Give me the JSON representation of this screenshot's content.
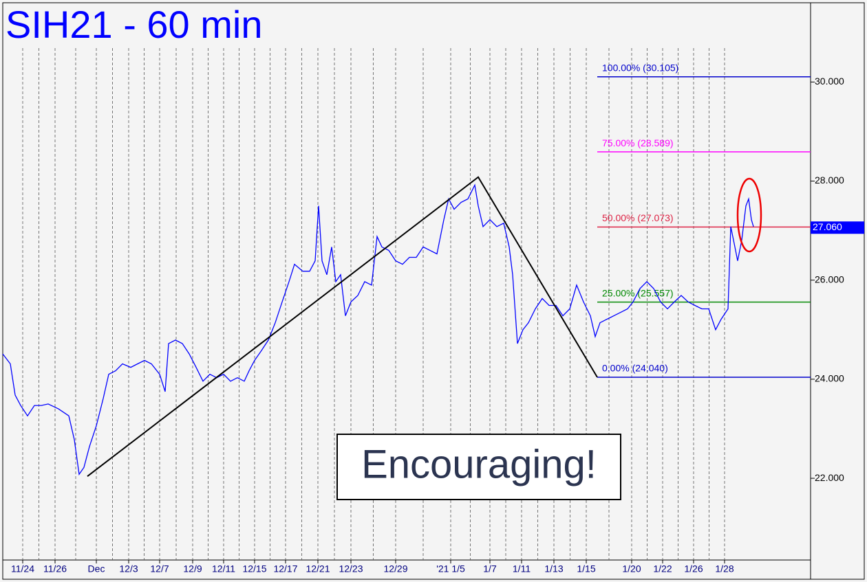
{
  "chart_data": {
    "type": "line",
    "title": "SIH21 - 60 min",
    "annotation": "Encouraging!",
    "color": "#0000ff",
    "x": [
      0,
      11,
      18,
      26,
      36,
      46,
      56,
      66,
      81,
      96,
      104,
      111,
      118,
      126,
      136,
      146,
      154,
      164,
      174,
      186,
      196,
      206,
      216,
      228,
      236,
      241,
      251,
      261,
      271,
      281,
      291,
      301,
      311,
      321,
      331,
      341,
      351,
      358,
      366,
      376,
      386,
      396,
      406,
      416,
      424,
      436,
      446,
      454,
      459,
      464,
      471,
      478,
      484,
      491,
      498,
      506,
      516,
      526,
      536,
      544,
      551,
      561,
      571,
      581,
      591,
      601,
      611,
      621,
      631,
      641,
      648,
      656,
      666,
      676,
      686,
      691,
      698,
      708,
      718,
      728,
      736,
      741,
      748,
      756,
      764,
      774,
      784,
      794,
      804,
      814,
      824,
      834,
      844,
      854,
      861,
      868,
      878,
      888,
      898,
      908,
      916,
      926,
      936,
      946,
      956,
      966,
      976,
      986,
      996,
      1006,
      1016,
      1026,
      1036,
      1044,
      1054,
      1058,
      1064,
      1068,
      1074,
      1080,
      1084,
      1088,
      1091
    ],
    "values": [
      24.51,
      24.31,
      23.68,
      23.47,
      23.26,
      23.47,
      23.47,
      23.5,
      23.4,
      23.26,
      22.78,
      22.08,
      22.22,
      22.64,
      23.06,
      23.61,
      24.1,
      24.17,
      24.31,
      24.24,
      24.31,
      24.38,
      24.31,
      24.1,
      23.75,
      24.72,
      24.79,
      24.72,
      24.51,
      24.24,
      23.96,
      24.1,
      24.03,
      24.1,
      23.96,
      24.03,
      23.96,
      24.17,
      24.38,
      24.58,
      24.79,
      25.14,
      25.56,
      25.97,
      26.32,
      26.18,
      26.18,
      26.39,
      27.5,
      26.39,
      26.11,
      26.67,
      25.97,
      26.11,
      25.28,
      25.56,
      25.69,
      25.97,
      25.9,
      26.88,
      26.67,
      26.6,
      26.39,
      26.32,
      26.46,
      26.46,
      26.67,
      26.6,
      26.53,
      27.22,
      27.64,
      27.43,
      27.57,
      27.64,
      27.92,
      27.5,
      27.08,
      27.22,
      27.08,
      27.15,
      26.67,
      26.11,
      24.72,
      25.0,
      25.14,
      25.42,
      25.63,
      25.49,
      25.49,
      25.28,
      25.42,
      25.9,
      25.56,
      25.28,
      24.86,
      25.14,
      25.21,
      25.28,
      25.35,
      25.42,
      25.56,
      25.83,
      25.97,
      25.83,
      25.56,
      25.42,
      25.56,
      25.69,
      25.56,
      25.49,
      25.42,
      25.42,
      25.0,
      25.21,
      25.42,
      27.08,
      26.67,
      26.39,
      26.81,
      27.5,
      27.64,
      27.22,
      27.08
    ],
    "trend_line": {
      "x": [
        123,
        691,
        864
      ],
      "values": [
        22.04,
        28.08,
        24.04
      ]
    },
    "levels": [
      {
        "label": "100.00% (30.105)",
        "value": 30.105,
        "color": "#0000cc"
      },
      {
        "label": "75.00% (28.589)",
        "value": 28.589,
        "color": "#ff00ff"
      },
      {
        "label": "50.00% (27.073)",
        "value": 27.073,
        "color": "#dd2244"
      },
      {
        "label": "25.00% (25.557)",
        "value": 25.557,
        "color": "#008800"
      },
      {
        "label": "0.00% (24.040)",
        "value": 24.04,
        "color": "#0000cc"
      }
    ],
    "last_value": {
      "value": 27.06,
      "label": "27.060"
    },
    "xlim": [
      0,
      1174
    ],
    "ylim": [
      20.35,
      31.6
    ],
    "yticks": [
      {
        "value": 22,
        "label": "22.000"
      },
      {
        "value": 24,
        "label": "24.000"
      },
      {
        "value": 26,
        "label": "26.000"
      },
      {
        "value": 28,
        "label": "28.000"
      },
      {
        "value": 30,
        "label": "30.000"
      }
    ],
    "xticks": [
      {
        "value": 29,
        "label": "11/24"
      },
      {
        "value": 76,
        "label": "11/26"
      },
      {
        "value": 136,
        "label": "Dec"
      },
      {
        "value": 183,
        "label": "12/3"
      },
      {
        "value": 228,
        "label": "12/7"
      },
      {
        "value": 276,
        "label": "12/9"
      },
      {
        "value": 321,
        "label": "12/11"
      },
      {
        "value": 366,
        "label": "12/15"
      },
      {
        "value": 411,
        "label": "12/17"
      },
      {
        "value": 458,
        "label": "12/21"
      },
      {
        "value": 506,
        "label": "12/23"
      },
      {
        "value": 571,
        "label": "12/29"
      },
      {
        "value": 651,
        "label": "'21 1/5"
      },
      {
        "value": 708,
        "label": "1/7"
      },
      {
        "value": 754,
        "label": "1/11"
      },
      {
        "value": 801,
        "label": "1/13"
      },
      {
        "value": 848,
        "label": "1/15"
      },
      {
        "value": 914,
        "label": "1/20"
      },
      {
        "value": 959,
        "label": "1/22"
      },
      {
        "value": 1004,
        "label": "1/26"
      },
      {
        "value": 1049,
        "label": "1/28"
      }
    ]
  }
}
